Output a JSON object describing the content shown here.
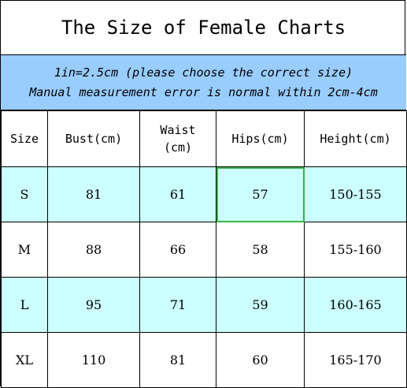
{
  "title": "The Size of Female Charts",
  "note": {
    "line1": "1in=2.5cm (please choose the correct size)",
    "line2": "Manual measurement error is normal within 2cm-4cm"
  },
  "table": {
    "headers": [
      "Size",
      "Bust(cm)",
      "Waist\n(cm)",
      "Hips(cm)",
      "Height(cm)"
    ],
    "rows": [
      [
        "S",
        "81",
        "61",
        "57",
        "150-155"
      ],
      [
        "M",
        "88",
        "66",
        "58",
        "155-160"
      ],
      [
        "L",
        "95",
        "71",
        "59",
        "160-165"
      ],
      [
        "XL",
        "110",
        "81",
        "60",
        "165-170"
      ]
    ]
  },
  "colors": {
    "note_bg": "#99ccff",
    "row_highlight": "#ccffff",
    "selected_border": "#3ab34a"
  }
}
